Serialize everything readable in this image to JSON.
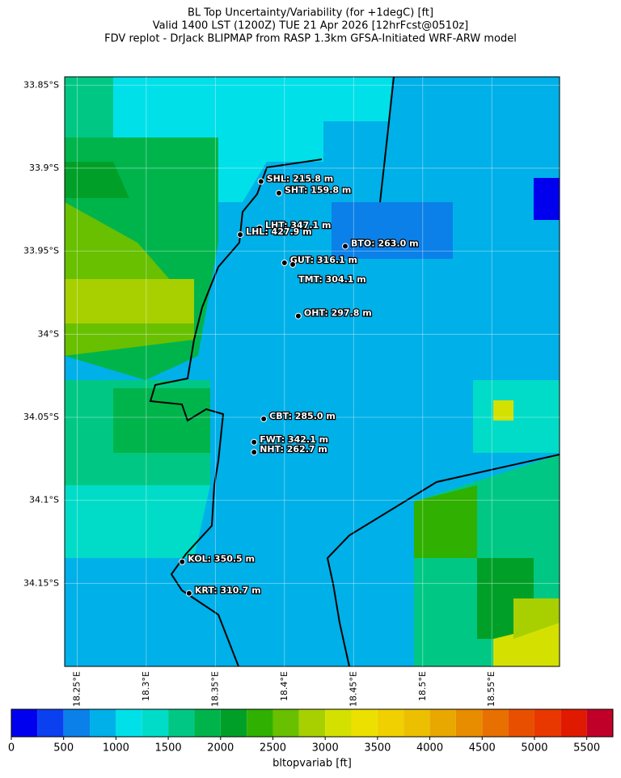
{
  "chart_data": {
    "type": "map",
    "title": "BL Top Uncertainty/Variability (for +1degC) [ft]",
    "subtitle": [
      "Valid 1400 LST (1200Z) TUE 21 Apr 2026 [12hrFcst@0510z]",
      "FDV replot - DrJack BLIPMAP from RASP 1.3km GFSA-Initiated WRF-ARW model"
    ],
    "xlim": [
      18.241,
      18.599
    ],
    "ylim": [
      -34.2,
      -33.845
    ],
    "xticks": [
      {
        "value": 18.25,
        "label": "18.25°E"
      },
      {
        "value": 18.3,
        "label": "18.3°E"
      },
      {
        "value": 18.35,
        "label": "18.35°E"
      },
      {
        "value": 18.4,
        "label": "18.4°E"
      },
      {
        "value": 18.45,
        "label": "18.45°E"
      },
      {
        "value": 18.5,
        "label": "18.5°E"
      },
      {
        "value": 18.55,
        "label": "18.55°E"
      }
    ],
    "yticks": [
      {
        "value": -33.85,
        "label": "33.85°S"
      },
      {
        "value": -33.9,
        "label": "33.9°S"
      },
      {
        "value": -33.95,
        "label": "33.95°S"
      },
      {
        "value": -34,
        "label": "34°S"
      },
      {
        "value": -34.05,
        "label": "34.05°S"
      },
      {
        "value": -34.1,
        "label": "34.1°S"
      },
      {
        "value": -34.15,
        "label": "34.15°S"
      }
    ],
    "grid": true,
    "stations": [
      {
        "label": "SHL: 215.8 m",
        "x": 18.383,
        "y": -33.908
      },
      {
        "label": "SHT: 159.8 m",
        "x": 18.396,
        "y": -33.915
      },
      {
        "label": "LHT: 347.1 m",
        "x": 18.382,
        "y": -33.936
      },
      {
        "label": "LHL: 427.9 m",
        "x": 18.368,
        "y": -33.94
      },
      {
        "label": "BTO: 263.0 m",
        "x": 18.444,
        "y": -33.947
      },
      {
        "label": "GUT: 316.1 m",
        "x": 18.4,
        "y": -33.957
      },
      {
        "label": "TMT: 304.1 m",
        "x": 18.406,
        "y": -33.958
      },
      {
        "label": "OHT: 297.8 m",
        "x": 18.41,
        "y": -33.989
      },
      {
        "label": "CBT: 285.0 m",
        "x": 18.385,
        "y": -34.051
      },
      {
        "label": "FWT: 342.1 m",
        "x": 18.378,
        "y": -34.065
      },
      {
        "label": "NHT: 262.7 m",
        "x": 18.378,
        "y": -34.071
      },
      {
        "label": "KOL: 350.5 m",
        "x": 18.326,
        "y": -34.137
      },
      {
        "label": "KRT: 310.7 m",
        "x": 18.331,
        "y": -34.156
      }
    ],
    "colorbar": {
      "label": "bltopvariab [ft]",
      "bounds": [
        0,
        250,
        500,
        750,
        1000,
        1250,
        1500,
        1750,
        2000,
        2250,
        2500,
        2750,
        3000,
        3250,
        3500,
        3750,
        4000,
        4250,
        4500,
        4750,
        5000,
        5250,
        5500,
        5750
      ],
      "colors": [
        "#0000ee",
        "#0a40f0",
        "#0a80e8",
        "#00b0e8",
        "#00e0e8",
        "#00dcc8",
        "#00c884",
        "#00b44c",
        "#00a028",
        "#30b000",
        "#68c000",
        "#a8d000",
        "#d4e000",
        "#ece000",
        "#f0d000",
        "#ecc000",
        "#e8a800",
        "#e88c00",
        "#e87000",
        "#e85000",
        "#e83800",
        "#e01a00",
        "#c00028"
      ],
      "ticks": [
        0,
        500,
        1000,
        1500,
        2000,
        2500,
        3000,
        3500,
        4000,
        4500,
        5000,
        5500
      ]
    }
  }
}
